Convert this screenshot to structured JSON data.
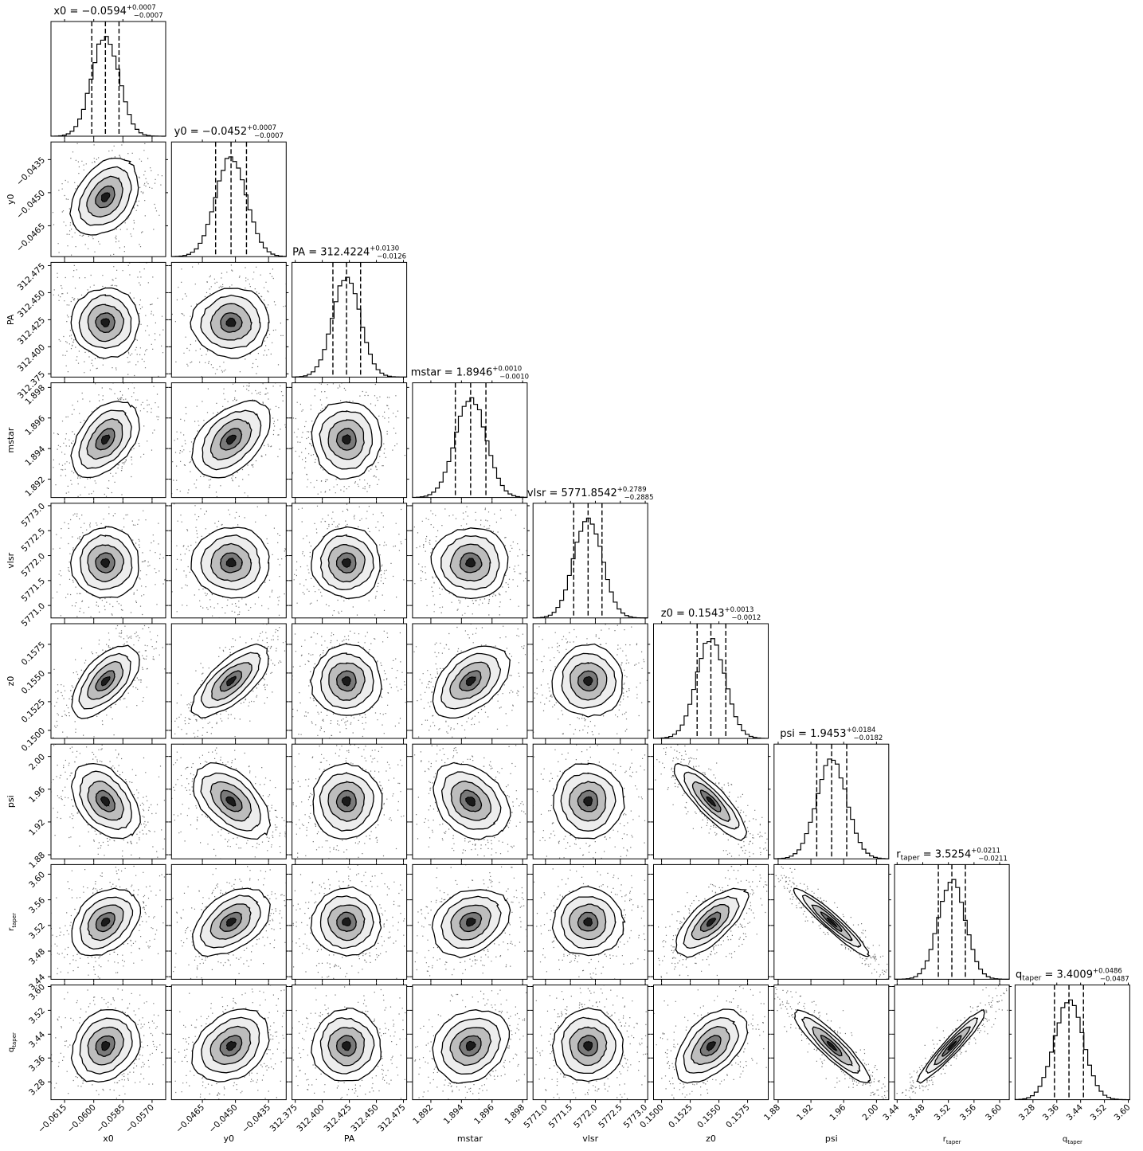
{
  "chart_data": {
    "type": "scatter",
    "subtype": "corner-plot",
    "parameters": [
      {
        "key": "x0",
        "label": "x0",
        "label_sub": "",
        "median": -0.0594,
        "plus": 0.0007,
        "minus": 0.0007,
        "range": [
          -0.0622,
          -0.0563
        ],
        "ticks": [
          -0.0615,
          -0.06,
          -0.0585,
          -0.057
        ],
        "tick_labels": [
          "−0.0615",
          "−0.0600",
          "−0.0585",
          "−0.0570"
        ],
        "title": {
          "prefix": "x0 = −0.0594",
          "sub": "",
          "rest": "",
          "sup": "+0.0007",
          "inf": "−0.0007"
        }
      },
      {
        "key": "y0",
        "label": "y0",
        "label_sub": "",
        "median": -0.0452,
        "plus": 0.0007,
        "minus": 0.0007,
        "range": [
          -0.0479,
          -0.0427
        ],
        "ticks": [
          -0.0465,
          -0.045,
          -0.0435
        ],
        "tick_labels": [
          "−0.0465",
          "−0.0450",
          "−0.0435"
        ],
        "title": {
          "prefix": "y0 = −0.0452",
          "sub": "",
          "rest": "",
          "sup": "+0.0007",
          "inf": "−0.0007"
        }
      },
      {
        "key": "PA",
        "label": "PA",
        "label_sub": "",
        "median": 312.4224,
        "plus": 0.013,
        "minus": 0.0126,
        "range": [
          312.372,
          312.478
        ],
        "ticks": [
          312.375,
          312.4,
          312.425,
          312.45,
          312.475
        ],
        "tick_labels": [
          "312.375",
          "312.400",
          "312.425",
          "312.450",
          "312.475"
        ],
        "title": {
          "prefix": "PA = 312.4224",
          "sub": "",
          "rest": "",
          "sup": "+0.0130",
          "inf": "−0.0126"
        }
      },
      {
        "key": "mstar",
        "label": "mstar",
        "label_sub": "",
        "median": 1.8946,
        "plus": 0.001,
        "minus": 0.001,
        "range": [
          1.8908,
          1.8983
        ],
        "ticks": [
          1.892,
          1.894,
          1.896,
          1.898
        ],
        "tick_labels": [
          "1.892",
          "1.894",
          "1.896",
          "1.898"
        ],
        "title": {
          "prefix": "mstar = 1.8946",
          "sub": "",
          "rest": "",
          "sup": "+0.0010",
          "inf": "−0.0010"
        }
      },
      {
        "key": "vlsr",
        "label": "vlsr",
        "label_sub": "",
        "median": 5771.8542,
        "plus": 0.2789,
        "minus": 0.2885,
        "range": [
          5770.75,
          5773.05
        ],
        "ticks": [
          5771.0,
          5771.5,
          5772.0,
          5772.5,
          5773.0
        ],
        "tick_labels": [
          "5771.0",
          "5771.5",
          "5772.0",
          "5772.5",
          "5773.0"
        ],
        "title": {
          "prefix": "vlsr = 5771.8542",
          "sub": "",
          "rest": "",
          "sup": "+0.2789",
          "inf": "−0.2885"
        }
      },
      {
        "key": "z0",
        "label": "z0",
        "label_sub": "",
        "median": 0.1543,
        "plus": 0.0013,
        "minus": 0.0012,
        "range": [
          0.1493,
          0.1593
        ],
        "ticks": [
          0.15,
          0.1525,
          0.155,
          0.1575
        ],
        "tick_labels": [
          "0.1500",
          "0.1525",
          "0.1550",
          "0.1575"
        ],
        "title": {
          "prefix": "z0 = 0.1543",
          "sub": "",
          "rest": "",
          "sup": "+0.0013",
          "inf": "−0.0012"
        }
      },
      {
        "key": "psi",
        "label": "psi",
        "label_sub": "",
        "median": 1.9453,
        "plus": 0.0184,
        "minus": 0.0182,
        "range": [
          1.875,
          2.015
        ],
        "ticks": [
          1.88,
          1.92,
          1.96,
          2.0
        ],
        "tick_labels": [
          "1.88",
          "1.92",
          "1.96",
          "2.00"
        ],
        "title": {
          "prefix": "psi = 1.9453",
          "sub": "",
          "rest": "",
          "sup": "+0.0184",
          "inf": "−0.0182"
        }
      },
      {
        "key": "r_taper",
        "label": "r",
        "label_sub": "taper",
        "median": 3.5254,
        "plus": 0.0211,
        "minus": 0.0211,
        "range": [
          3.436,
          3.615
        ],
        "ticks": [
          3.44,
          3.48,
          3.52,
          3.56,
          3.6
        ],
        "tick_labels": [
          "3.44",
          "3.48",
          "3.52",
          "3.56",
          "3.60"
        ],
        "title": {
          "prefix": "r",
          "sub": "taper",
          "rest": " = 3.5254",
          "sup": "+0.0211",
          "inf": "−0.0211"
        }
      },
      {
        "key": "q_taper",
        "label": "q",
        "label_sub": "taper",
        "median": 3.4009,
        "plus": 0.0486,
        "minus": 0.0487,
        "range": [
          3.22,
          3.605
        ],
        "ticks": [
          3.28,
          3.36,
          3.44,
          3.52,
          3.6
        ],
        "tick_labels": [
          "3.28",
          "3.36",
          "3.44",
          "3.52",
          "3.60"
        ],
        "title": {
          "prefix": "q",
          "sub": "taper",
          "rest": " = 3.4009",
          "sup": "+0.0486",
          "inf": "−0.0487"
        }
      }
    ],
    "correlations": [
      {
        "x": "x0",
        "y": "y0",
        "r": 0.35
      },
      {
        "x": "x0",
        "y": "PA",
        "r": 0.0
      },
      {
        "x": "y0",
        "y": "PA",
        "r": 0.0
      },
      {
        "x": "x0",
        "y": "mstar",
        "r": 0.45
      },
      {
        "x": "y0",
        "y": "mstar",
        "r": 0.45
      },
      {
        "x": "PA",
        "y": "mstar",
        "r": 0.0
      },
      {
        "x": "x0",
        "y": "vlsr",
        "r": 0.0
      },
      {
        "x": "y0",
        "y": "vlsr",
        "r": 0.0
      },
      {
        "x": "PA",
        "y": "vlsr",
        "r": 0.0
      },
      {
        "x": "mstar",
        "y": "vlsr",
        "r": 0.0
      },
      {
        "x": "x0",
        "y": "z0",
        "r": 0.6
      },
      {
        "x": "y0",
        "y": "z0",
        "r": 0.7
      },
      {
        "x": "PA",
        "y": "z0",
        "r": 0.0
      },
      {
        "x": "mstar",
        "y": "z0",
        "r": 0.45
      },
      {
        "x": "vlsr",
        "y": "z0",
        "r": 0.0
      },
      {
        "x": "x0",
        "y": "psi",
        "r": -0.4
      },
      {
        "x": "y0",
        "y": "psi",
        "r": -0.5
      },
      {
        "x": "PA",
        "y": "psi",
        "r": 0.0
      },
      {
        "x": "mstar",
        "y": "psi",
        "r": -0.3
      },
      {
        "x": "vlsr",
        "y": "psi",
        "r": 0.0
      },
      {
        "x": "z0",
        "y": "psi",
        "r": -0.85
      },
      {
        "x": "x0",
        "y": "r_taper",
        "r": 0.35
      },
      {
        "x": "y0",
        "y": "r_taper",
        "r": 0.45
      },
      {
        "x": "PA",
        "y": "r_taper",
        "r": 0.0
      },
      {
        "x": "mstar",
        "y": "r_taper",
        "r": 0.25
      },
      {
        "x": "vlsr",
        "y": "r_taper",
        "r": 0.0
      },
      {
        "x": "z0",
        "y": "r_taper",
        "r": 0.7
      },
      {
        "x": "psi",
        "y": "r_taper",
        "r": -0.95
      },
      {
        "x": "x0",
        "y": "q_taper",
        "r": 0.2
      },
      {
        "x": "y0",
        "y": "q_taper",
        "r": 0.3
      },
      {
        "x": "PA",
        "y": "q_taper",
        "r": 0.0
      },
      {
        "x": "mstar",
        "y": "q_taper",
        "r": 0.2
      },
      {
        "x": "vlsr",
        "y": "q_taper",
        "r": 0.0
      },
      {
        "x": "z0",
        "y": "q_taper",
        "r": 0.5
      },
      {
        "x": "psi",
        "y": "q_taper",
        "r": -0.9
      },
      {
        "x": "r_taper",
        "y": "q_taper",
        "r": 0.95
      }
    ],
    "quantile_lines": [
      "16%",
      "50%",
      "84%"
    ],
    "grid": false,
    "legend": "none"
  }
}
